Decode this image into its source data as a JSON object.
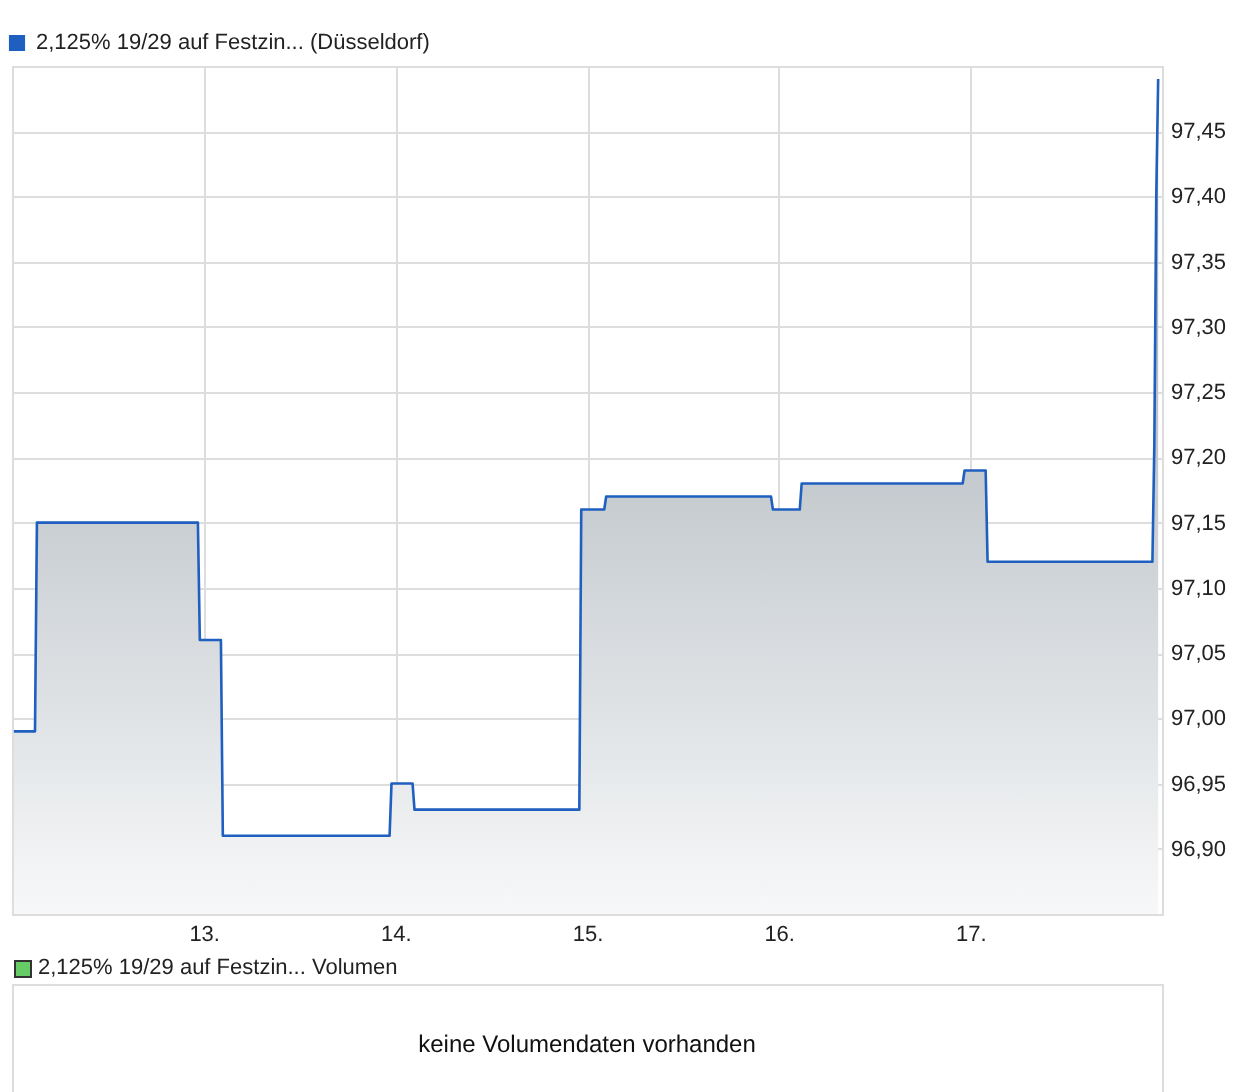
{
  "chart_data": [
    {
      "type": "area",
      "legend": "top left",
      "grid": true,
      "xlim": [
        12.0,
        18.0
      ],
      "ylim": [
        96.85,
        97.5
      ],
      "xticks": [
        {
          "value": 13,
          "label": "13."
        },
        {
          "value": 14,
          "label": "14."
        },
        {
          "value": 15,
          "label": "15."
        },
        {
          "value": 16,
          "label": "16."
        },
        {
          "value": 17,
          "label": "17."
        }
      ],
      "yticks": [
        {
          "value": 96.9,
          "label": "96,90"
        },
        {
          "value": 96.95,
          "label": "96,95"
        },
        {
          "value": 97.0,
          "label": "97,00"
        },
        {
          "value": 97.05,
          "label": "97,05"
        },
        {
          "value": 97.1,
          "label": "97,10"
        },
        {
          "value": 97.15,
          "label": "97,15"
        },
        {
          "value": 97.2,
          "label": "97,20"
        },
        {
          "value": 97.25,
          "label": "97,25"
        },
        {
          "value": 97.3,
          "label": "97,30"
        },
        {
          "value": 97.35,
          "label": "97,35"
        },
        {
          "value": 97.4,
          "label": "97,40"
        },
        {
          "value": 97.45,
          "label": "97,45"
        }
      ],
      "series": [
        {
          "name": "2,125% 19/29 auf Festzin... (Düsseldorf)",
          "color": "#1f5fbf",
          "x": [
            12.01,
            12.12,
            12.13,
            12.97,
            12.98,
            13.09,
            13.1,
            13.97,
            13.98,
            14.09,
            14.1,
            14.96,
            14.97,
            15.09,
            15.1,
            15.96,
            15.97,
            16.11,
            16.12,
            16.96,
            16.97,
            17.08,
            17.09,
            17.95,
            17.96,
            17.97,
            17.98
          ],
          "values": [
            96.99,
            96.99,
            97.15,
            97.15,
            97.06,
            97.06,
            96.91,
            96.91,
            96.95,
            96.95,
            96.93,
            96.93,
            97.16,
            97.16,
            97.17,
            97.17,
            97.16,
            97.16,
            97.18,
            97.18,
            97.19,
            97.19,
            97.12,
            97.12,
            97.21,
            97.4,
            97.49
          ]
        }
      ]
    },
    {
      "type": "other",
      "title": "2,125% 19/29 auf Festzin... Volumen",
      "annotations": [
        "keine Volumendaten vorhanden"
      ]
    }
  ]
}
